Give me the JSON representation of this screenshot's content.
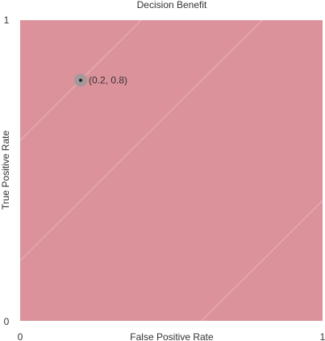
{
  "chart_data": {
    "type": "area",
    "title": "Decision Benefit",
    "xlabel": "False Positive Rate",
    "ylabel": "True Positive Rate",
    "xlim": [
      0,
      1
    ],
    "ylim": [
      0,
      1
    ],
    "x_ticks": [
      "0",
      "1"
    ],
    "y_ticks": [
      "0",
      "1"
    ],
    "grid": false,
    "legend": "none",
    "contour_bands": {
      "slope": 1.0,
      "levels": [
        -0.6,
        -0.2,
        0.2,
        0.6
      ],
      "colors": [
        "#ffffff",
        "#f3dfe1",
        "#eccbd0",
        "#e6b9be",
        "#e1a8af",
        "#dc929b"
      ]
    },
    "highlight_point": {
      "x": 0.2,
      "y": 0.8,
      "label": "(0.2, 0.8)",
      "color": "#222222",
      "halo_color": "#9a9a9a"
    }
  }
}
